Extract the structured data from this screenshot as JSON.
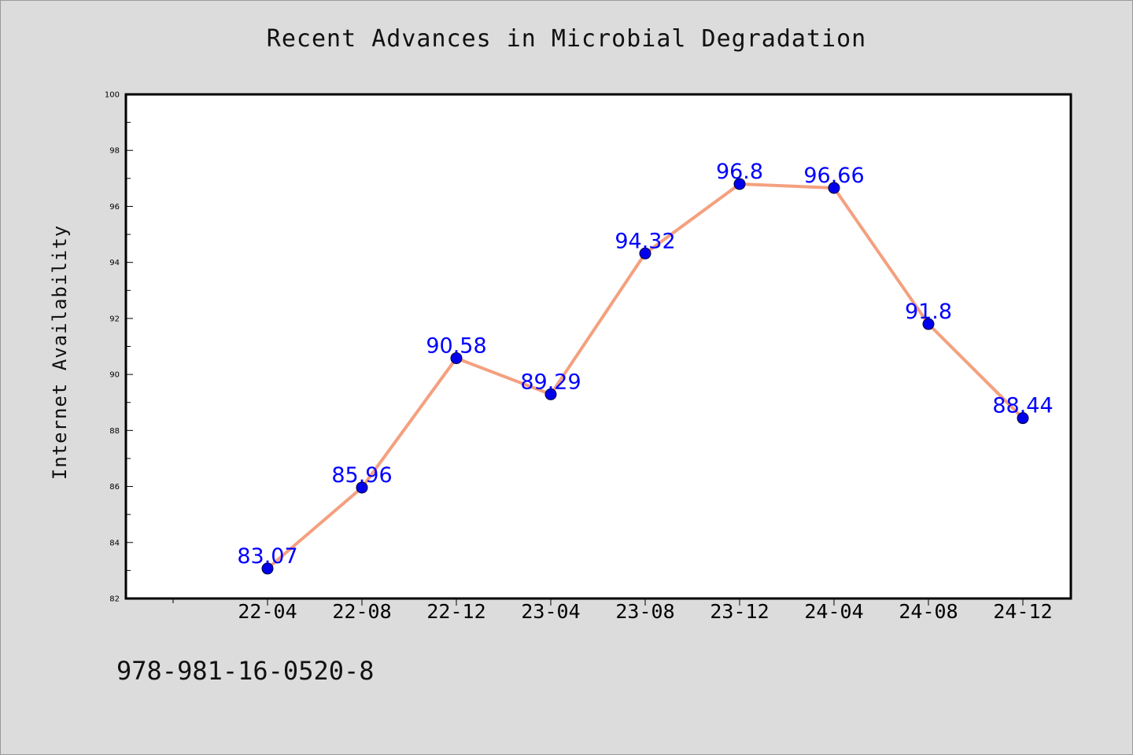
{
  "chart_data": {
    "type": "line",
    "title": "Recent Advances in Microbial Degradation",
    "xlabel": "",
    "ylabel": "Internet Availability",
    "categories": [
      "22-04",
      "22-08",
      "22-12",
      "23-04",
      "23-08",
      "23-12",
      "24-04",
      "24-08",
      "24-12"
    ],
    "series": [
      {
        "values": [
          83.07,
          85.96,
          90.58,
          89.29,
          94.32,
          96.8,
          96.66,
          91.8,
          88.44
        ],
        "labels": [
          "83.07",
          "85.96",
          "90.58",
          "89.29",
          "94.32",
          "96.8",
          "96.66",
          "91.8",
          "88.44"
        ]
      }
    ],
    "ylim": [
      82,
      100
    ],
    "yticks": [
      "82",
      "84",
      "86",
      "88",
      "90",
      "92",
      "94",
      "96",
      "98",
      "100"
    ],
    "grid": false,
    "legend": "none",
    "colors": {
      "line": "#f4a07f",
      "marker": "#0000ee",
      "marker_edge": "#000033",
      "data_label": "#0000ff",
      "background": "#dcdcdc",
      "plot_background": "#ffffff"
    }
  },
  "footer": {
    "isbn": "978-981-16-0520-8"
  }
}
